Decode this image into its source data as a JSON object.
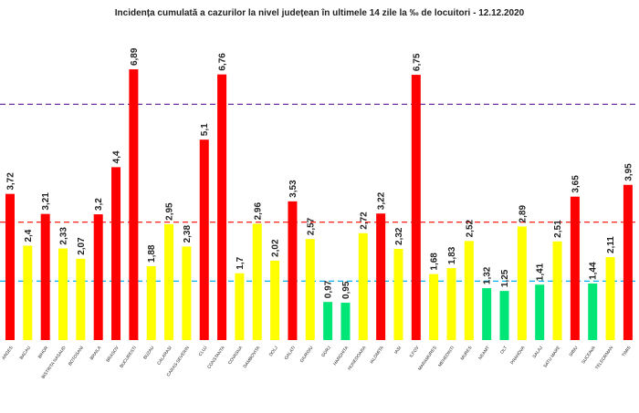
{
  "chart_data": {
    "type": "bar",
    "title": "Incidența cumulată a cazurilor la nivel județean în ultimele 14 zile   la ‰ de locuitori  - 12.12.2020",
    "xlabel": "",
    "ylabel": "",
    "ylim": [
      0,
      7.5
    ],
    "grid": false,
    "legend": "none",
    "colors": {
      "red": "#ff0000",
      "yellow": "#ffff00",
      "green": "#00e676",
      "line_purple": "#7030a0",
      "line_red": "#ff0000",
      "line_blue": "#00b0f0"
    },
    "reference_lines": [
      {
        "value": 6.0,
        "color": "line_purple"
      },
      {
        "value": 3.0,
        "color": "line_red"
      },
      {
        "value": 1.5,
        "color": "line_blue"
      }
    ],
    "categories": [
      "ARGES",
      "BACAU",
      "BIHOR",
      "BISTRITA NASAUD",
      "BOTOSANI",
      "BRAILA",
      "BRASOV",
      "BUCURESTI",
      "BUZAU",
      "CALARASI",
      "CARAS-SEVERIN",
      "CLUJ",
      "CONSTANTA",
      "COVASNA",
      "DAMBOVITA",
      "DOLJ",
      "GALATI",
      "GIURGIU",
      "GORJ",
      "HARGHITA",
      "HUNEDOARA",
      "IALOMITA",
      "IASI",
      "ILFOV",
      "MARAMURES",
      "MEHEDINTI",
      "MURES",
      "NEAMT",
      "OLT",
      "PRAHOVA",
      "SALAJ",
      "SATU MARE",
      "SIBIU",
      "SUCEAVA",
      "TELEORMAN",
      "TIMIS"
    ],
    "values": [
      3.72,
      2.4,
      3.21,
      2.33,
      2.07,
      3.2,
      4.4,
      6.89,
      1.88,
      2.95,
      2.38,
      5.1,
      6.76,
      1.7,
      2.96,
      2.02,
      3.53,
      2.57,
      0.97,
      0.95,
      2.72,
      3.22,
      2.32,
      6.75,
      1.68,
      1.83,
      2.52,
      1.32,
      1.25,
      2.89,
      1.41,
      2.51,
      3.65,
      1.44,
      2.11,
      3.95
    ],
    "value_labels": [
      "3,72",
      "2,4",
      "3,21",
      "2,33",
      "2,07",
      "3,2",
      "4,4",
      "6,89",
      "1,88",
      "2,95",
      "2,38",
      "5,1",
      "6,76",
      "1,7",
      "2,96",
      "2,02",
      "3,53",
      "2,57",
      "0,97",
      "0,95",
      "2,72",
      "3,22",
      "2,32",
      "6,75",
      "1,68",
      "1,83",
      "2,52",
      "1,32",
      "1,25",
      "2,89",
      "1,41",
      "2,51",
      "3,65",
      "1,44",
      "2,11",
      "3,95"
    ],
    "bar_colors": [
      "red",
      "yellow",
      "red",
      "yellow",
      "yellow",
      "red",
      "red",
      "red",
      "yellow",
      "yellow",
      "yellow",
      "red",
      "red",
      "yellow",
      "yellow",
      "yellow",
      "red",
      "yellow",
      "green",
      "green",
      "yellow",
      "red",
      "yellow",
      "red",
      "yellow",
      "yellow",
      "yellow",
      "green",
      "green",
      "yellow",
      "green",
      "yellow",
      "red",
      "green",
      "yellow",
      "red"
    ]
  }
}
